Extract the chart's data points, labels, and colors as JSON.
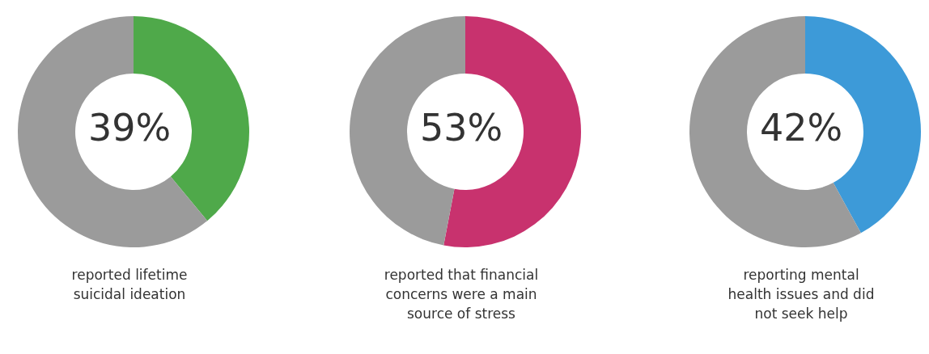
{
  "chart_data": [
    {
      "type": "donut",
      "title": "39%",
      "categories": [
        null,
        null
      ],
      "values": [
        39,
        61
      ],
      "colors": [
        "#4fa94a",
        "#9b9b9b"
      ],
      "annotations": [
        "reported lifetime suicidal ideation"
      ]
    },
    {
      "type": "donut",
      "title": "53%",
      "categories": [
        null,
        null
      ],
      "values": [
        53,
        47
      ],
      "colors": [
        "#c8326e",
        "#9b9b9b"
      ],
      "annotations": [
        "reported that financial concerns were a main source of stress"
      ]
    },
    {
      "type": "donut",
      "title": "42%",
      "categories": [
        null,
        null
      ],
      "values": [
        42,
        58
      ],
      "colors": [
        "#3d9ad8",
        "#9b9b9b"
      ],
      "annotations": [
        "reporting mental health issues and did not seek help"
      ]
    }
  ]
}
